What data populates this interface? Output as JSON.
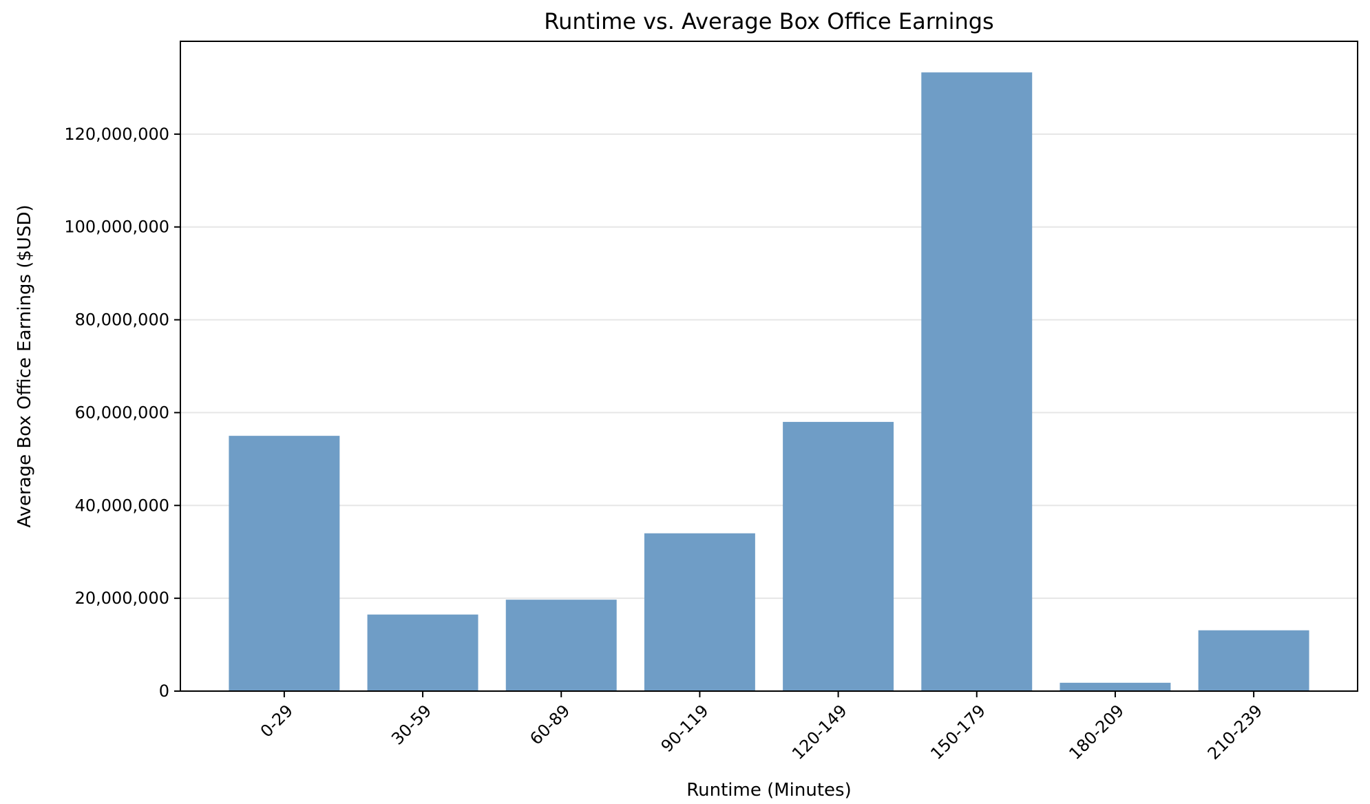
{
  "chart_data": {
    "type": "bar",
    "title": "Runtime vs. Average Box Office Earnings",
    "xlabel": "Runtime (Minutes)",
    "ylabel": "Average Box Office Earnings ($USD)",
    "categories": [
      "0-29",
      "30-59",
      "60-89",
      "90-119",
      "120-149",
      "150-179",
      "180-209",
      "210-239"
    ],
    "values": [
      55000000,
      16500000,
      19700000,
      34000000,
      58000000,
      133300000,
      1800000,
      13100000
    ],
    "ylim": [
      0,
      140000000
    ],
    "yticks": [
      0,
      20000000,
      40000000,
      60000000,
      80000000,
      100000000,
      120000000
    ],
    "ytick_labels": [
      "0",
      "20,000,000",
      "40,000,000",
      "60,000,000",
      "80,000,000",
      "100,000,000",
      "120,000,000"
    ],
    "grid": "y",
    "bar_color": "#6f9dc6",
    "grid_color": "#e6e6e6"
  }
}
